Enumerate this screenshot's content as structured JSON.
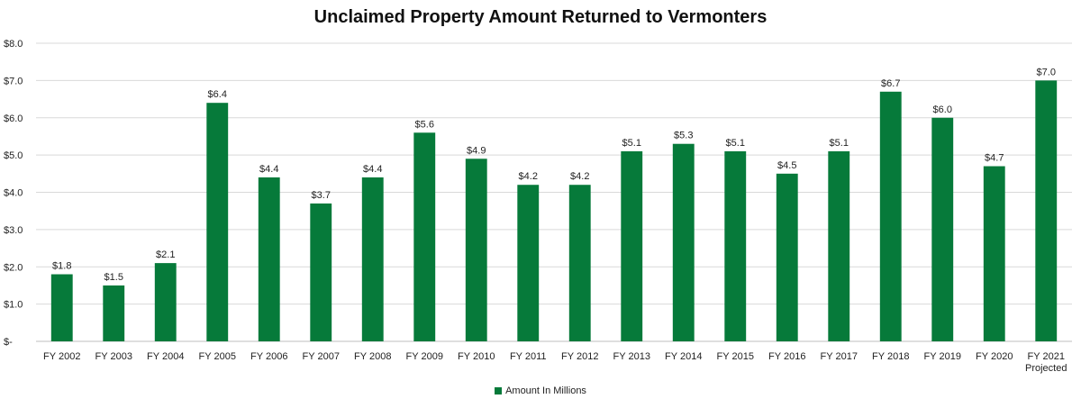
{
  "chart_data": {
    "type": "bar",
    "title": "Unclaimed Property Amount Returned to Vermonters",
    "xlabel": "",
    "ylabel": "",
    "categories": [
      [
        "FY 2002"
      ],
      [
        "FY 2003"
      ],
      [
        "FY 2004"
      ],
      [
        "FY 2005"
      ],
      [
        "FY 2006"
      ],
      [
        "FY 2007"
      ],
      [
        "FY 2008"
      ],
      [
        "FY 2009"
      ],
      [
        "FY 2010"
      ],
      [
        "FY 2011"
      ],
      [
        "FY 2012"
      ],
      [
        "FY 2013"
      ],
      [
        "FY 2014"
      ],
      [
        "FY 2015"
      ],
      [
        "FY 2016"
      ],
      [
        "FY 2017"
      ],
      [
        "FY 2018"
      ],
      [
        "FY 2019"
      ],
      [
        "FY 2020"
      ],
      [
        "FY 2021",
        "Projected"
      ]
    ],
    "series": [
      {
        "name": "Amount  In Millions",
        "color": "#067a3a",
        "values": [
          1.8,
          1.5,
          2.1,
          6.4,
          4.4,
          3.7,
          4.4,
          5.6,
          4.9,
          4.2,
          4.2,
          5.1,
          5.3,
          5.1,
          4.5,
          5.1,
          6.7,
          6.0,
          4.7,
          7.0
        ],
        "data_labels": [
          "$1.8",
          "$1.5",
          "$2.1",
          "$6.4",
          "$4.4",
          "$3.7",
          "$4.4",
          "$5.6",
          "$4.9",
          "$4.2",
          "$4.2",
          "$5.1",
          "$5.3",
          "$5.1",
          "$4.5",
          "$5.1",
          "$6.7",
          "$6.0",
          "$4.7",
          "$7.0"
        ]
      }
    ],
    "ylim": [
      0,
      8
    ],
    "yticks": [
      0,
      1,
      2,
      3,
      4,
      5,
      6,
      7,
      8
    ],
    "ytick_labels": [
      "$-",
      "$1.0",
      "$2.0",
      "$3.0",
      "$4.0",
      "$5.0",
      "$6.0",
      "$7.0",
      "$8.0"
    ],
    "grid": true,
    "grid_color": "#d9d9d9",
    "legend_position": "bottom"
  }
}
